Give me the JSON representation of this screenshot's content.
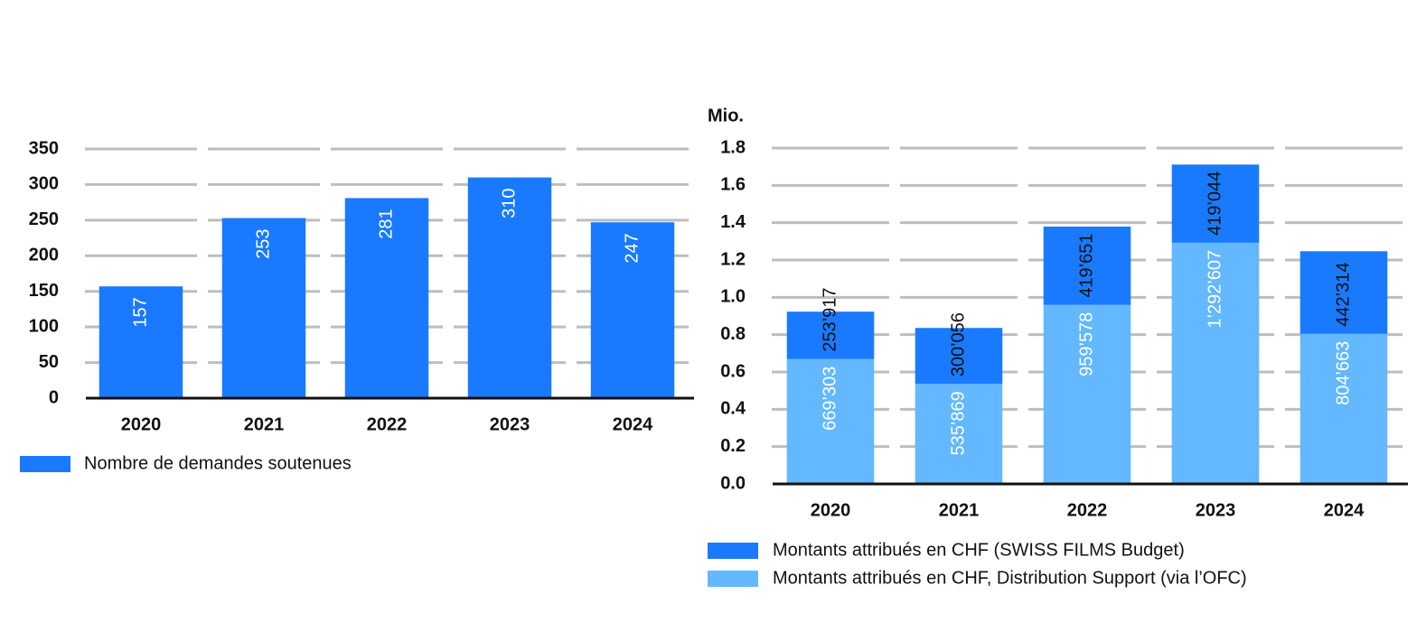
{
  "chart_data": [
    {
      "type": "bar",
      "categories": [
        "2020",
        "2021",
        "2022",
        "2023",
        "2024"
      ],
      "values": [
        157,
        253,
        281,
        310,
        247
      ],
      "color": "#1a7aff",
      "legend": "Nombre de demandes soutenues",
      "ylim": [
        0,
        350
      ],
      "yticks": [
        0,
        50,
        100,
        150,
        200,
        250,
        300,
        350
      ],
      "grid": true
    },
    {
      "type": "stacked_bar",
      "ylabel": "Mio.",
      "categories": [
        "2020",
        "2021",
        "2022",
        "2023",
        "2024"
      ],
      "series": [
        {
          "name": "Montants attribués en CHF, Distribution Support (via l’OFC)",
          "color": "#63b8ff",
          "values": [
            0.669303,
            0.535869,
            0.959578,
            1.292607,
            0.804663
          ],
          "value_labels": [
            "669’303",
            "535’869",
            "959’578",
            "1’292’607",
            "804’663"
          ]
        },
        {
          "name": "Montants attribués en CHF (SWISS FILMS Budget)",
          "color": "#1a7aff",
          "values": [
            0.253917,
            0.300056,
            0.419651,
            0.419044,
            0.442314
          ],
          "value_labels": [
            "253’917",
            "300’056",
            "419’651",
            "419’044",
            "442’314"
          ]
        }
      ],
      "ylim": [
        0,
        1.8
      ],
      "yticks": [
        {
          "value": 0,
          "label": "0.0"
        },
        0.2,
        0.4,
        0.6,
        0.8,
        {
          "value": 1,
          "label": "1.0"
        },
        1.2,
        1.4,
        1.6,
        1.8
      ],
      "grid": true
    }
  ]
}
